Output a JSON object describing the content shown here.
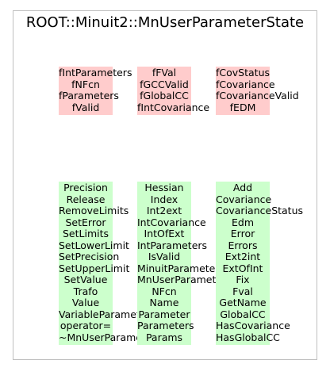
{
  "title": "ROOT::Minuit2::MnUserParameterState",
  "colors": {
    "frame_border": "#bfbfbf",
    "member_block": "#ffcccc",
    "method_block": "#ccffcc",
    "text": "#000000"
  },
  "member_groups": [
    [
      "fIntParameters",
      "fNFcn",
      "fParameters",
      "fValid"
    ],
    [
      "fFVal",
      "fGCCValid",
      "fGlobalCC",
      "fIntCovariance"
    ],
    [
      "fCovStatus",
      "fCovariance",
      "fCovarianceValid",
      "fEDM"
    ]
  ],
  "method_groups": [
    [
      "Precision",
      "Release",
      "RemoveLimits",
      "SetError",
      "SetLimits",
      "SetLowerLimit",
      "SetPrecision",
      "SetUpperLimit",
      "SetValue",
      "Trafo",
      "Value",
      "VariableParameters",
      "operator=",
      "~MnUserParameterState"
    ],
    [
      "Hessian",
      "Index",
      "Int2ext",
      "IntCovariance",
      "IntOfExt",
      "IntParameters",
      "IsValid",
      "MinuitParameters",
      "MnUserParameterState",
      "NFcn",
      "Name",
      "Parameter",
      "Parameters",
      "Params"
    ],
    [
      "Add",
      "Covariance",
      "CovarianceStatus",
      "Edm",
      "Error",
      "Errors",
      "Ext2int",
      "ExtOfInt",
      "Fix",
      "Fval",
      "GetName",
      "GlobalCC",
      "HasCovariance",
      "HasGlobalCC"
    ]
  ]
}
